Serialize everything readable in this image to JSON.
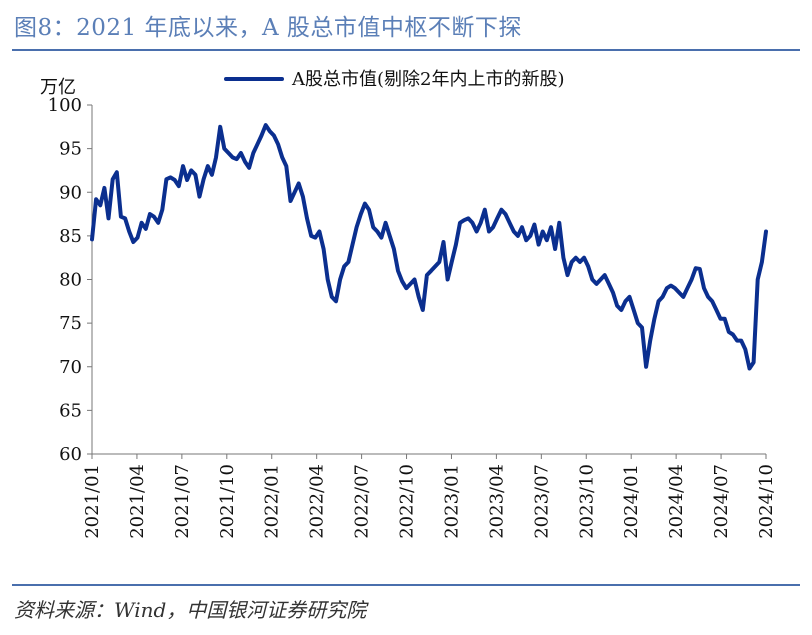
{
  "figure": {
    "title": "图8：2021 年底以来，A 股总市值中枢不断下探",
    "source": "资料来源：Wind，中国银河证券研究院"
  },
  "colors": {
    "line": "#0b2f8f",
    "rule": "#4a6fad",
    "title": "#5b7fb7"
  },
  "chart_data": {
    "type": "line",
    "title": "",
    "xlabel": "",
    "ylabel": "万亿",
    "y_unit": "万亿",
    "ylim": [
      60,
      100
    ],
    "yticks": [
      60,
      65,
      70,
      75,
      80,
      85,
      90,
      95,
      100
    ],
    "xlim": [
      "2021-01",
      "2024-10"
    ],
    "xticks": [
      "2021/01",
      "2021/04",
      "2021/07",
      "2021/10",
      "2022/01",
      "2022/04",
      "2022/07",
      "2022/10",
      "2023/01",
      "2023/04",
      "2023/07",
      "2023/10",
      "2024/01",
      "2024/04",
      "2024/07",
      "2024/10"
    ],
    "legend": {
      "position": "top-center",
      "entries": [
        "A股总市值(剔除2年内上市的新股)"
      ]
    },
    "grid": false,
    "series": [
      {
        "name": "A股总市值(剔除2年内上市的新股)",
        "values": [
          84.6,
          89.2,
          88.5,
          90.5,
          87.0,
          91.5,
          92.3,
          87.2,
          87.0,
          85.5,
          84.3,
          84.8,
          86.5,
          85.8,
          87.5,
          87.2,
          86.5,
          88.0,
          91.5,
          91.7,
          91.4,
          90.7,
          93.0,
          91.4,
          92.5,
          92.0,
          89.5,
          91.5,
          93.0,
          92.0,
          94.0,
          97.5,
          95.0,
          94.5,
          94.0,
          93.8,
          94.5,
          93.5,
          92.8,
          94.5,
          95.5,
          96.5,
          97.7,
          97.0,
          96.5,
          95.5,
          94.0,
          93.0,
          89.0,
          90.0,
          91.0,
          89.5,
          87.0,
          85.0,
          84.8,
          85.5,
          83.5,
          80.0,
          78.0,
          77.5,
          80.0,
          81.5,
          82.0,
          84.0,
          86.0,
          87.5,
          88.7,
          88.0,
          86.0,
          85.5,
          84.8,
          86.5,
          85.0,
          83.5,
          81.0,
          79.8,
          79.0,
          79.5,
          80.0,
          78.0,
          76.5,
          80.5,
          81.0,
          81.5,
          82.0,
          84.3,
          80.0,
          82.0,
          84.0,
          86.5,
          86.8,
          87.0,
          86.5,
          85.5,
          86.5,
          88.0,
          85.5,
          86.0,
          87.0,
          88.0,
          87.5,
          86.5,
          85.5,
          85.0,
          86.0,
          84.5,
          85.0,
          86.3,
          84.0,
          85.5,
          84.5,
          86.0,
          83.5,
          86.5,
          82.5,
          80.5,
          82.0,
          82.5,
          82.0,
          82.5,
          81.5,
          80.0,
          79.5,
          80.0,
          80.5,
          79.5,
          78.5,
          77.0,
          76.5,
          77.5,
          78.0,
          76.5,
          75.0,
          74.5,
          70.0,
          73.0,
          75.5,
          77.5,
          78.0,
          79.0,
          79.3,
          79.0,
          78.5,
          78.0,
          79.0,
          80.0,
          81.3,
          81.2,
          79.0,
          78.0,
          77.5,
          76.5,
          75.5,
          75.5,
          74.0,
          73.7,
          73.0,
          73.0,
          72.0,
          69.8,
          70.5,
          80.0,
          82.0,
          85.5
        ]
      }
    ]
  }
}
